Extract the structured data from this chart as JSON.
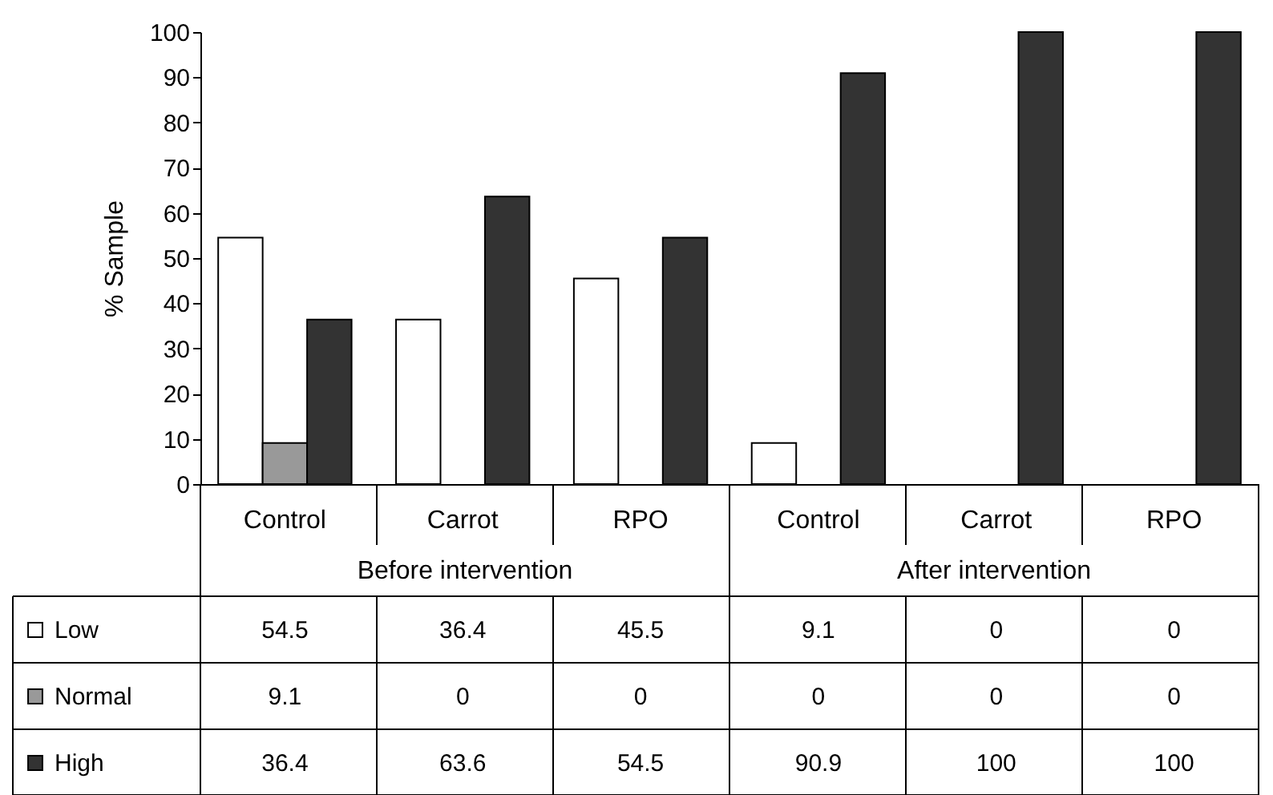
{
  "chart_data": {
    "type": "bar",
    "ylabel": "% Sample",
    "categories": [
      "Control",
      "Carrot",
      "RPO",
      "Control",
      "Carrot",
      "RPO"
    ],
    "annotations": [
      "Before intervention",
      "After intervention"
    ],
    "series": [
      {
        "name": "Low",
        "color": "#ffffff",
        "values": [
          54.5,
          36.4,
          45.5,
          9.1,
          0,
          0
        ]
      },
      {
        "name": "Normal",
        "color": "#999999",
        "values": [
          9.1,
          0,
          0,
          0,
          0,
          0
        ]
      },
      {
        "name": "High",
        "color": "#333333",
        "values": [
          36.4,
          63.6,
          54.5,
          90.9,
          100,
          100
        ]
      }
    ],
    "ylim": [
      0,
      100
    ],
    "yticks": [
      0,
      10,
      20,
      30,
      40,
      50,
      60,
      70,
      80,
      90,
      100
    ],
    "grid": false,
    "legend": "bottom",
    "data_labels": true
  }
}
